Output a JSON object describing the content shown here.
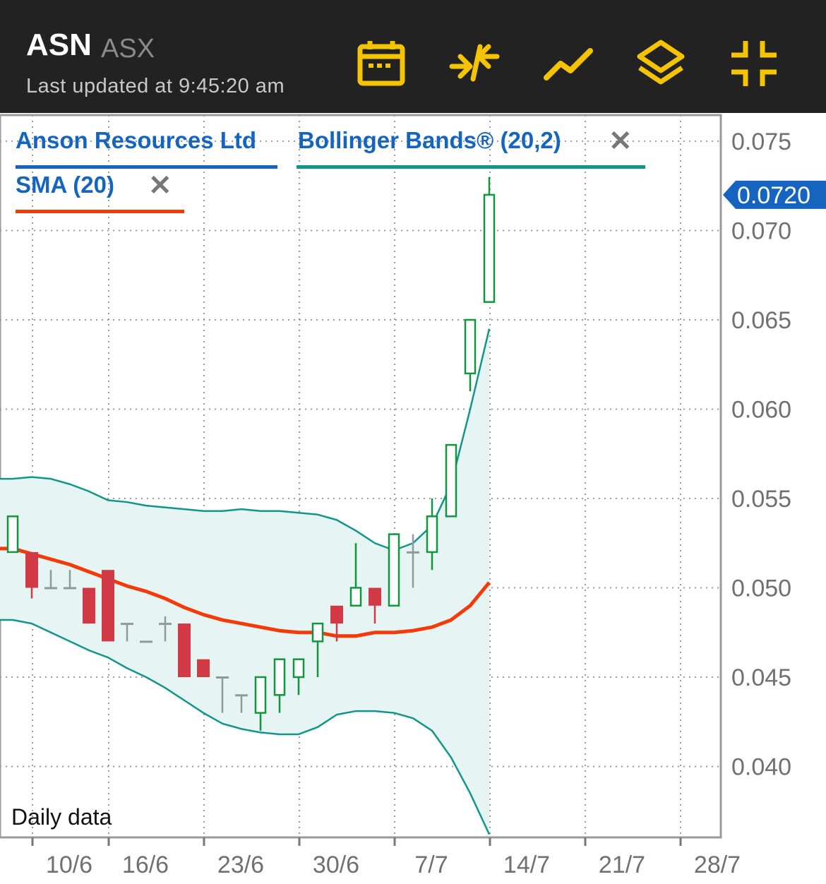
{
  "header": {
    "ticker": "ASN",
    "exchange": "ASX",
    "last_updated": "Last updated at 9:45:20 am",
    "tools": [
      "calendar-icon",
      "compare-icon",
      "line-chart-icon",
      "layers-icon",
      "collapse-icon"
    ],
    "accent_color": "#F5C400"
  },
  "legend": {
    "security_name": "Anson Resources Ltd",
    "indicator_1": "Bollinger Bands® (20,2)",
    "indicator_2": "SMA (20)",
    "security_color": "#1565C0",
    "bollinger_color": "#119688",
    "sma_color": "#F33B0A"
  },
  "footer_label": "Daily data",
  "chart_data": {
    "type": "candlestick",
    "y_axis": {
      "ylim": [
        0.036,
        0.0765
      ],
      "ticks": [
        "0.075",
        "0.070",
        "0.065",
        "0.060",
        "0.055",
        "0.050",
        "0.045",
        "0.040"
      ],
      "tick_values": [
        0.075,
        0.07,
        0.065,
        0.06,
        0.055,
        0.05,
        0.045,
        0.04
      ],
      "position": "right"
    },
    "x_axis": {
      "ticks": [
        "10/6",
        "16/6",
        "23/6",
        "30/6",
        "7/7",
        "14/7",
        "21/7",
        "28/7"
      ],
      "tick_index": [
        1,
        5,
        10,
        15,
        20,
        25,
        30,
        35
      ]
    },
    "last_price_label": "0.0720",
    "last_price": 0.072,
    "candles": [
      {
        "i": 0,
        "o": 0.052,
        "h": 0.054,
        "l": 0.052,
        "c": 0.054
      },
      {
        "i": 1,
        "o": 0.052,
        "h": 0.052,
        "l": 0.0494,
        "c": 0.05
      },
      {
        "i": 2,
        "o": 0.05,
        "h": 0.051,
        "l": 0.05,
        "c": 0.05
      },
      {
        "i": 3,
        "o": 0.05,
        "h": 0.051,
        "l": 0.05,
        "c": 0.05
      },
      {
        "i": 4,
        "o": 0.05,
        "h": 0.05,
        "l": 0.048,
        "c": 0.048
      },
      {
        "i": 5,
        "o": 0.051,
        "h": 0.051,
        "l": 0.047,
        "c": 0.047
      },
      {
        "i": 6,
        "o": 0.048,
        "h": 0.048,
        "l": 0.047,
        "c": 0.048
      },
      {
        "i": 7,
        "o": 0.047,
        "h": 0.047,
        "l": 0.047,
        "c": 0.047
      },
      {
        "i": 8,
        "o": 0.048,
        "h": 0.0484,
        "l": 0.047,
        "c": 0.048
      },
      {
        "i": 9,
        "o": 0.048,
        "h": 0.048,
        "l": 0.045,
        "c": 0.045
      },
      {
        "i": 10,
        "o": 0.046,
        "h": 0.046,
        "l": 0.045,
        "c": 0.045
      },
      {
        "i": 11,
        "o": 0.045,
        "h": 0.045,
        "l": 0.043,
        "c": 0.045
      },
      {
        "i": 12,
        "o": 0.044,
        "h": 0.044,
        "l": 0.043,
        "c": 0.044
      },
      {
        "i": 13,
        "o": 0.043,
        "h": 0.045,
        "l": 0.042,
        "c": 0.045
      },
      {
        "i": 14,
        "o": 0.044,
        "h": 0.046,
        "l": 0.043,
        "c": 0.046
      },
      {
        "i": 15,
        "o": 0.045,
        "h": 0.046,
        "l": 0.044,
        "c": 0.046
      },
      {
        "i": 16,
        "o": 0.047,
        "h": 0.048,
        "l": 0.045,
        "c": 0.048
      },
      {
        "i": 17,
        "o": 0.049,
        "h": 0.049,
        "l": 0.047,
        "c": 0.048
      },
      {
        "i": 18,
        "o": 0.049,
        "h": 0.0525,
        "l": 0.049,
        "c": 0.05
      },
      {
        "i": 19,
        "o": 0.05,
        "h": 0.05,
        "l": 0.048,
        "c": 0.049
      },
      {
        "i": 20,
        "o": 0.049,
        "h": 0.053,
        "l": 0.049,
        "c": 0.053
      },
      {
        "i": 21,
        "o": 0.052,
        "h": 0.053,
        "l": 0.05,
        "c": 0.052
      },
      {
        "i": 22,
        "o": 0.052,
        "h": 0.055,
        "l": 0.051,
        "c": 0.054
      },
      {
        "i": 23,
        "o": 0.054,
        "h": 0.058,
        "l": 0.054,
        "c": 0.058
      },
      {
        "i": 24,
        "o": 0.062,
        "h": 0.065,
        "l": 0.061,
        "c": 0.065
      },
      {
        "i": 25,
        "o": 0.066,
        "h": 0.073,
        "l": 0.066,
        "c": 0.072
      }
    ],
    "sma_20": [
      0.0522,
      0.0519,
      0.0516,
      0.0513,
      0.0509,
      0.0505,
      0.0501,
      0.0498,
      0.0494,
      0.0489,
      0.0485,
      0.0482,
      0.048,
      0.0478,
      0.0476,
      0.0475,
      0.0475,
      0.0473,
      0.0473,
      0.0475,
      0.0475,
      0.0476,
      0.0478,
      0.0482,
      0.049,
      0.0503
    ],
    "bollinger_upper": [
      0.0561,
      0.0562,
      0.0561,
      0.0558,
      0.0554,
      0.0549,
      0.0548,
      0.0546,
      0.0545,
      0.0544,
      0.0543,
      0.0543,
      0.0544,
      0.0543,
      0.0543,
      0.0542,
      0.0541,
      0.0538,
      0.0532,
      0.0525,
      0.0521,
      0.0525,
      0.0535,
      0.0558,
      0.06,
      0.0645
    ],
    "bollinger_lower": [
      0.0482,
      0.048,
      0.0475,
      0.047,
      0.0465,
      0.0461,
      0.0455,
      0.045,
      0.0444,
      0.0437,
      0.043,
      0.0424,
      0.0421,
      0.0419,
      0.0418,
      0.0418,
      0.0422,
      0.0429,
      0.0431,
      0.0431,
      0.043,
      0.0427,
      0.042,
      0.0405,
      0.0385,
      0.0362
    ],
    "up_color": "#119640",
    "down_color": "#D13A45",
    "flat_color": "#909A9A"
  }
}
